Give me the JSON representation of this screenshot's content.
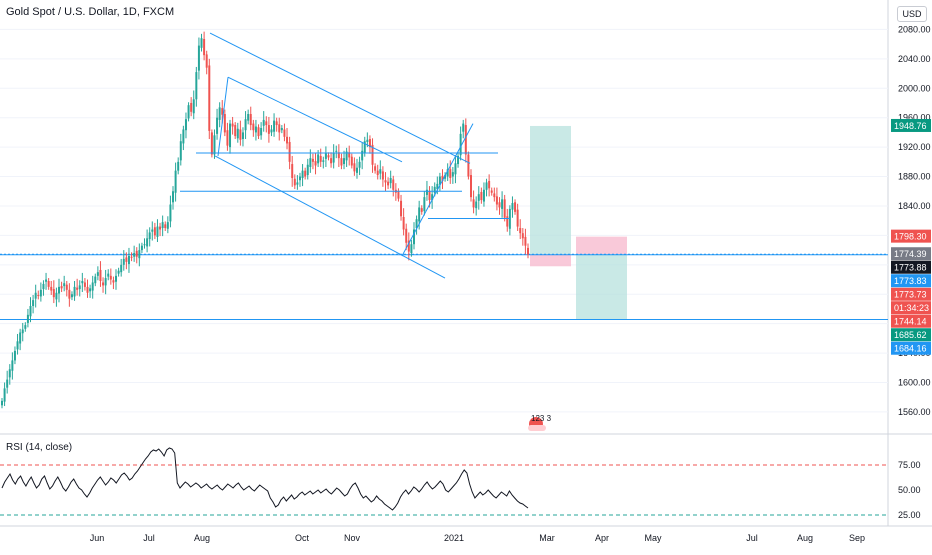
{
  "header": {
    "title": "Gold Spot / U.S. Dollar, 1D, FXCM",
    "currency": "USD"
  },
  "rsi": {
    "title": "RSI (14, close)",
    "levels": [
      75,
      50,
      25
    ],
    "level_labels": [
      "75.00",
      "50.00",
      "25.00"
    ],
    "ylim": [
      20,
      100
    ]
  },
  "overlay_text": "123 3",
  "colors": {
    "up": "#26a69a",
    "down": "#ef5350",
    "drawing": "#2196f3",
    "rsi_line": "#131722",
    "rsi_level_red": "#ef5350",
    "rsi_level_green": "#26a69a",
    "long_target": "#b2dfdb",
    "long_stop": "#f8bbd0",
    "price_badge_red": "#ef5350",
    "price_badge_green": "#089981",
    "price_badge_blue": "#2196f3",
    "price_badge_gray": "#787b86",
    "price_badge_dark": "#131722"
  },
  "chart_data": [
    {
      "type": "candlestick",
      "title": "Gold Spot / U.S. Dollar, 1D, FXCM",
      "ylim": [
        1530,
        2120
      ],
      "y_ticks": [
        1560,
        1600,
        1640,
        1680,
        1720,
        1760,
        1800,
        1840,
        1880,
        1920,
        1960,
        2000,
        2040,
        2080
      ],
      "y_tick_labels": [
        "1560.00",
        "1600.00",
        "1640.00",
        "1680.00",
        "1720.00",
        "1760.00",
        "1800.00",
        "1840.00",
        "1880.00",
        "1920.00",
        "1960.00",
        "2000.00",
        "2040.00",
        "2080.00"
      ],
      "x_ticks": [
        "Jun",
        "Jul",
        "Aug",
        "Oct",
        "Nov",
        "2021",
        "Mar",
        "Apr",
        "May",
        "Jul",
        "Aug",
        "Sep"
      ],
      "price_labels": [
        {
          "value": 1948.76,
          "text": "1948.76",
          "color": "green"
        },
        {
          "value": 1798.3,
          "text": "1798.30",
          "color": "red"
        },
        {
          "value": 1774.39,
          "text": "1774.39",
          "color": "gray"
        },
        {
          "value": 1773.88,
          "text": "1773.88",
          "color": "dark"
        },
        {
          "value": 1773.83,
          "text": "1773.83",
          "color": "blue"
        },
        {
          "value": 1773.73,
          "text": "1773.73",
          "color": "red"
        },
        {
          "value": 1758.0,
          "text": "01:34:23",
          "color": "red"
        },
        {
          "value": 1744.14,
          "text": "1744.14",
          "color": "red"
        },
        {
          "value": 1685.62,
          "text": "1685.62",
          "color": "green"
        },
        {
          "value": 1684.16,
          "text": "1684.16",
          "color": "blue"
        }
      ],
      "closes": [
        1575,
        1592,
        1604,
        1618,
        1630,
        1643,
        1656,
        1668,
        1672,
        1678,
        1692,
        1704,
        1712,
        1722,
        1718,
        1726,
        1734,
        1740,
        1730,
        1725,
        1716,
        1722,
        1730,
        1728,
        1735,
        1726,
        1714,
        1720,
        1730,
        1726,
        1732,
        1738,
        1730,
        1722,
        1728,
        1736,
        1744,
        1750,
        1738,
        1732,
        1742,
        1748,
        1740,
        1736,
        1745,
        1752,
        1760,
        1768,
        1764,
        1772,
        1770,
        1776,
        1771,
        1780,
        1786,
        1788,
        1796,
        1804,
        1808,
        1800,
        1812,
        1808,
        1818,
        1810,
        1818,
        1842,
        1860,
        1888,
        1900,
        1928,
        1944,
        1958,
        1977,
        1968,
        1985,
        2022,
        2058,
        2068,
        2045,
        2028,
        1942,
        1910,
        1936,
        1960,
        1974,
        1964,
        1940,
        1922,
        1952,
        1948,
        1935,
        1945,
        1930,
        1940,
        1958,
        1965,
        1950,
        1943,
        1948,
        1935,
        1946,
        1957,
        1950,
        1938,
        1944,
        1956,
        1950,
        1940,
        1946,
        1934,
        1925,
        1900,
        1878,
        1868,
        1872,
        1880,
        1888,
        1880,
        1896,
        1905,
        1900,
        1895,
        1910,
        1900,
        1902,
        1912,
        1906,
        1898,
        1912,
        1915,
        1905,
        1895,
        1905,
        1914,
        1906,
        1895,
        1887,
        1892,
        1900,
        1915,
        1928,
        1930,
        1920,
        1896,
        1888,
        1882,
        1890,
        1876,
        1872,
        1868,
        1878,
        1862,
        1858,
        1850,
        1826,
        1808,
        1790,
        1778,
        1788,
        1808,
        1822,
        1838,
        1832,
        1852,
        1862,
        1848,
        1856,
        1866,
        1870,
        1880,
        1874,
        1882,
        1890,
        1878,
        1886,
        1898,
        1908,
        1938,
        1952,
        1910,
        1880,
        1852,
        1838,
        1846,
        1856,
        1848,
        1862,
        1872,
        1864,
        1858,
        1852,
        1842,
        1838,
        1849,
        1824,
        1812,
        1836,
        1844,
        1832,
        1812,
        1803,
        1796,
        1786,
        1774
      ]
    },
    {
      "type": "line",
      "title": "RSI (14, close)",
      "ylim": [
        20,
        100
      ],
      "values": [
        52,
        58,
        62,
        66,
        60,
        56,
        61,
        64,
        58,
        54,
        59,
        63,
        57,
        52,
        55,
        61,
        64,
        57,
        51,
        54,
        59,
        63,
        58,
        52,
        49,
        53,
        58,
        61,
        56,
        52,
        50,
        46,
        43,
        47,
        52,
        56,
        60,
        63,
        59,
        55,
        58,
        62,
        60,
        57,
        61,
        65,
        67,
        64,
        60,
        62,
        66,
        69,
        73,
        77,
        81,
        84,
        88,
        90,
        89,
        91,
        88,
        84,
        90,
        92,
        91,
        87,
        57,
        52,
        55,
        58,
        56,
        53,
        55,
        57,
        55,
        52,
        54,
        56,
        53,
        51,
        53,
        55,
        52,
        50,
        53,
        56,
        54,
        52,
        55,
        57,
        53,
        50,
        52,
        54,
        51,
        49,
        52,
        55,
        53,
        51,
        49,
        42,
        38,
        33,
        35,
        40,
        43,
        39,
        42,
        45,
        41,
        43,
        46,
        48,
        45,
        47,
        49,
        46,
        48,
        50,
        47,
        49,
        51,
        48,
        46,
        49,
        52,
        50,
        47,
        44,
        46,
        51,
        55,
        57,
        52,
        46,
        42,
        44,
        41,
        38,
        40,
        44,
        41,
        39,
        36,
        34,
        32,
        30,
        33,
        37,
        43,
        47,
        50,
        46,
        49,
        53,
        51,
        48,
        51,
        55,
        58,
        54,
        51,
        53,
        56,
        59,
        56,
        50,
        48,
        51,
        54,
        57,
        61,
        66,
        70,
        67,
        56,
        48,
        42,
        45,
        48,
        45,
        47,
        50,
        47,
        44,
        42,
        45,
        48,
        46,
        44,
        49,
        45,
        42,
        39,
        37,
        36,
        34,
        32
      ]
    }
  ]
}
